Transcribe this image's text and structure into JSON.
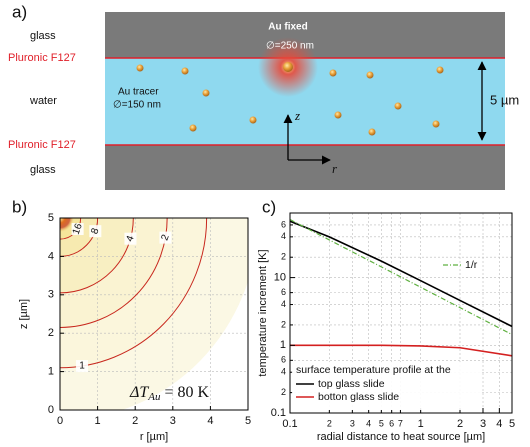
{
  "diagram": {
    "label": "a)",
    "top_layer": "glass",
    "top_coating": "Pluronic F127",
    "medium": "water",
    "bottom_coating": "Pluronic F127",
    "bottom_layer": "glass",
    "fixed_particle": {
      "name": "Au fixed",
      "size": "∅=250 nm"
    },
    "tracer_particle": {
      "name": "Au tracer",
      "size": "∅=150 nm"
    },
    "z_axis": "z",
    "r_axis": "r",
    "thickness": "5 µm"
  },
  "chart_data": [
    {
      "type": "contour",
      "label": "b)",
      "xlabel": "r [µm]",
      "ylabel": "z [µm]",
      "xlim": [
        0,
        5
      ],
      "ylim": [
        0,
        5
      ],
      "xticks": [
        0,
        1,
        2,
        3,
        4,
        5
      ],
      "yticks": [
        0,
        1,
        2,
        3,
        4,
        5
      ],
      "grid": true,
      "levels": [
        16,
        8,
        4,
        2,
        1
      ],
      "radii": [
        0.55,
        1.0,
        1.95,
        2.85,
        3.9
      ],
      "color": "#c8281e",
      "annotation": {
        "main": "ΔT",
        "sub": "Au",
        "rest": " = 80 K"
      }
    },
    {
      "type": "line",
      "label": "c)",
      "xlabel": "radial distance to heat source [µm]",
      "ylabel": "temperature increment [K]",
      "xlog": true,
      "ylog": true,
      "xlim": [
        0.1,
        5
      ],
      "ylim": [
        0.1,
        90
      ],
      "xticks": [
        0.1,
        {
          "value": 0.2,
          "label": "2"
        },
        {
          "value": 0.3,
          "label": "3"
        },
        {
          "value": 0.4,
          "label": "4"
        },
        {
          "value": 0.5,
          "label": "5"
        },
        {
          "value": 0.6,
          "label": "6"
        },
        {
          "value": 0.7,
          "label": "7"
        },
        1,
        2,
        3,
        4,
        5
      ],
      "yticks": [
        0.1,
        {
          "value": 0.2,
          "label": "2"
        },
        {
          "value": 0.4,
          "label": "4"
        },
        {
          "value": 0.6,
          "label": "6"
        },
        1,
        {
          "value": 2,
          "label": "2"
        },
        {
          "value": 4,
          "label": "4"
        },
        {
          "value": 6,
          "label": "6"
        },
        10,
        {
          "value": 20,
          "label": "2"
        },
        {
          "value": 40,
          "label": "4"
        },
        {
          "value": 60,
          "label": "6"
        }
      ],
      "grid": true,
      "legend_title": "surface temperature profile at the",
      "x": [
        0.1,
        0.2,
        0.5,
        1,
        2,
        5
      ],
      "series": [
        {
          "name": "top glass slide",
          "color": "#000000",
          "values": [
            68,
            40,
            17.5,
            9,
            4.6,
            1.9
          ]
        },
        {
          "name": "botton glass slide",
          "color": "#d42020",
          "values": [
            1,
            1,
            1,
            0.98,
            0.92,
            0.7
          ]
        },
        {
          "name": "1/r",
          "color": "#5fb040",
          "dashed": true,
          "values": [
            72,
            36,
            14.4,
            7.2,
            3.6,
            1.44
          ]
        }
      ]
    }
  ]
}
